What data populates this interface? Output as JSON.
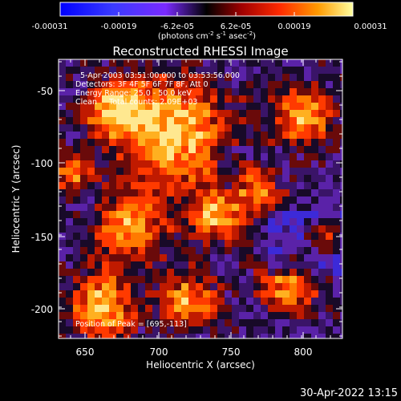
{
  "colorbar": {
    "tick_labels": [
      "-0.00031",
      "-0.00019",
      "-6.2e-05",
      "6.2e-05",
      "0.00019",
      "0.00031"
    ],
    "units_prefix": "(photons cm",
    "units_exp1": "-2",
    "units_mid1": " s",
    "units_exp2": "-1",
    "units_mid2": " asec",
    "units_exp3": "-2",
    "units_suffix": ")"
  },
  "image": {
    "title": "Reconstructed RHESSI Image",
    "info_lines": [
      "5-Apr-2003 03:51:00.000 to 03:53:56.000",
      "Detectors: 3F 4F 5F 6F 7F 8F, Att 0",
      "Energy Range: 25.0 - 50.0 keV",
      "Clean     Total counts: 2.09E+03"
    ],
    "peak_label": "Position of Peak = [695,-113]"
  },
  "axes": {
    "xlabel": "Heliocentric X (arcsec)",
    "ylabel": "Heliocentric Y (arcsec)",
    "xticks": [
      "650",
      "700",
      "750",
      "800"
    ],
    "yticks": [
      "-50",
      "-100",
      "-150",
      "-200"
    ]
  },
  "footer": {
    "timestamp": "30-Apr-2022 13:15"
  },
  "colors": {
    "background": "#000000",
    "text": "#ffffff"
  }
}
